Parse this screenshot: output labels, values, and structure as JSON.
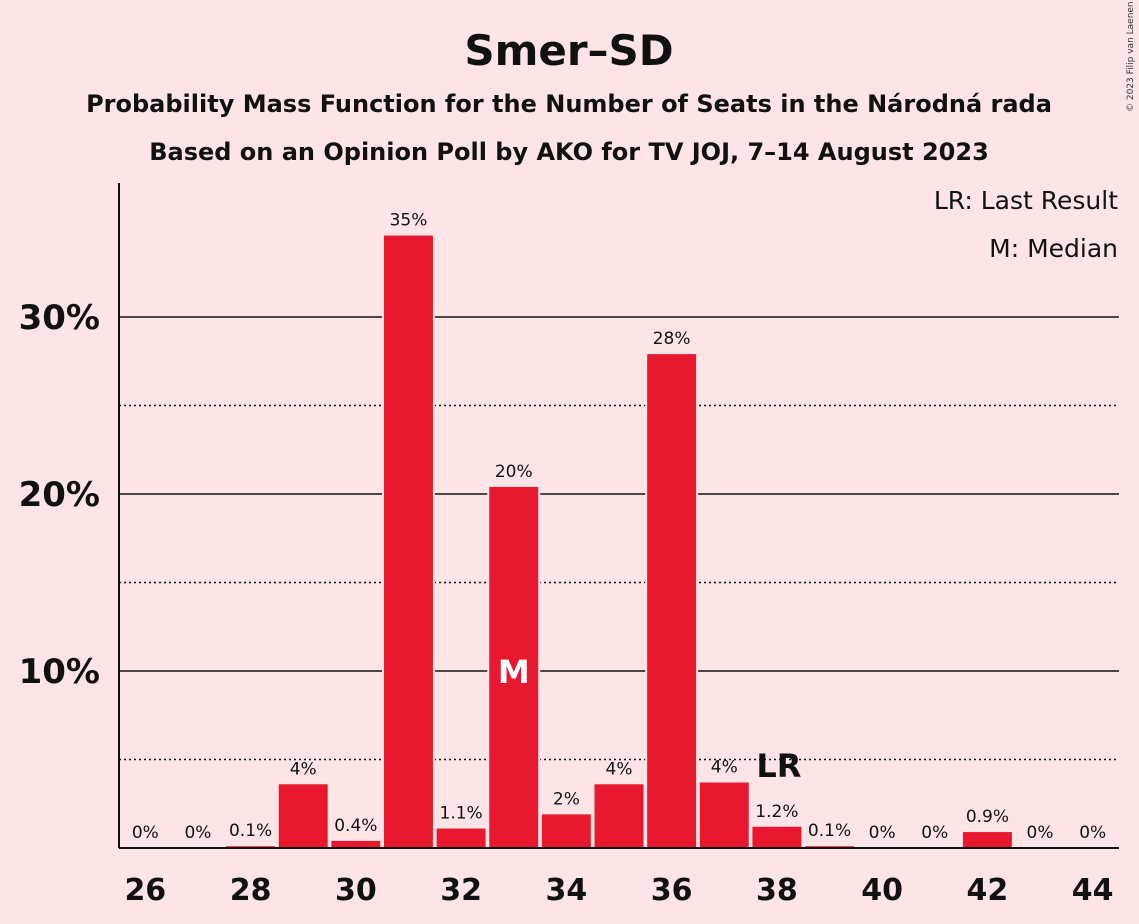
{
  "header": {
    "title": "Smer–SD",
    "subtitle1": "Probability Mass Function for the Number of Seats in the Národná rada",
    "subtitle2": "Based on an Opinion Poll by AKO for TV JOJ, 7–14 August 2023",
    "copyright": "© 2023 Filip van Laenen"
  },
  "legend": {
    "last_result": "LR: Last Result",
    "median": "M: Median"
  },
  "colors": {
    "background": "#fde4e6",
    "bar": "#e8192e"
  },
  "chart_data": {
    "type": "bar",
    "categories": [
      26,
      27,
      28,
      29,
      30,
      31,
      32,
      33,
      34,
      35,
      36,
      37,
      38,
      39,
      40,
      41,
      42,
      43,
      44
    ],
    "values": [
      0,
      0,
      0.1,
      3.6,
      0.4,
      34.6,
      1.1,
      20.4,
      1.9,
      3.6,
      27.9,
      3.7,
      1.2,
      0.1,
      0,
      0,
      0.9,
      0,
      0
    ],
    "value_labels": [
      "0%",
      "0%",
      "0.1%",
      "4%",
      "0.4%",
      "35%",
      "1.1%",
      "20%",
      "2%",
      "4%",
      "28%",
      "4%",
      "1.2%",
      "0.1%",
      "0%",
      "0%",
      "0.9%",
      "0%",
      "0%"
    ],
    "x_tick_labels": [
      "26",
      "28",
      "30",
      "32",
      "34",
      "36",
      "38",
      "40",
      "42",
      "44"
    ],
    "y_ticks": [
      {
        "value": 10,
        "label": "10%"
      },
      {
        "value": 20,
        "label": "20%"
      },
      {
        "value": 30,
        "label": "30%"
      }
    ],
    "minor_gridlines": [
      5,
      15,
      25
    ],
    "ylim": [
      0,
      37.5
    ],
    "median": {
      "seats": 33,
      "label": "M"
    },
    "last_result": {
      "seats": 38,
      "label": "LR"
    },
    "legend_position": "top-right"
  }
}
